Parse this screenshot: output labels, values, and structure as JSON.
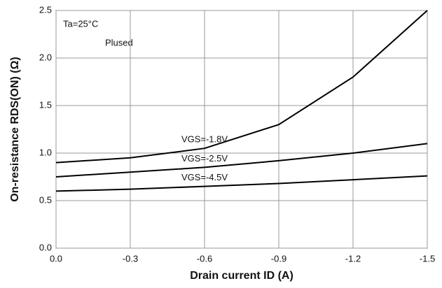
{
  "chart_data": {
    "type": "line",
    "x_label": "Drain current ID (A)",
    "y_label": "On-resistance RDS(ON) (Ω)",
    "annotations": [
      "Ta=25°C",
      "Plused"
    ],
    "x": [
      0,
      -0.3,
      -0.6,
      -0.9,
      -1.2,
      -1.5
    ],
    "series": [
      {
        "name": "VGS=-1.8V",
        "color": "#000000",
        "values": [
          0.9,
          0.95,
          1.05,
          1.3,
          1.8,
          2.5
        ]
      },
      {
        "name": "VGS=-2.5V",
        "color": "#000000",
        "values": [
          0.75,
          0.8,
          0.85,
          0.92,
          1.0,
          1.1
        ]
      },
      {
        "name": "VGS=-4.5V",
        "color": "#000000",
        "values": [
          0.6,
          0.62,
          0.65,
          0.68,
          0.72,
          0.76
        ]
      }
    ],
    "xlim": [
      0,
      -1.5
    ],
    "xticks": [
      {
        "value": 0,
        "label": "0.0"
      },
      -0.3,
      -0.6,
      -0.9,
      -1.2,
      -1.5
    ],
    "ylim": [
      0,
      2.5
    ],
    "yticks": [
      {
        "value": 0,
        "label": "0.0"
      },
      0.5,
      {
        "value": 1,
        "label": "1.0"
      },
      1.5,
      {
        "value": 2,
        "label": "2.0"
      },
      2.5
    ],
    "grid": true
  }
}
